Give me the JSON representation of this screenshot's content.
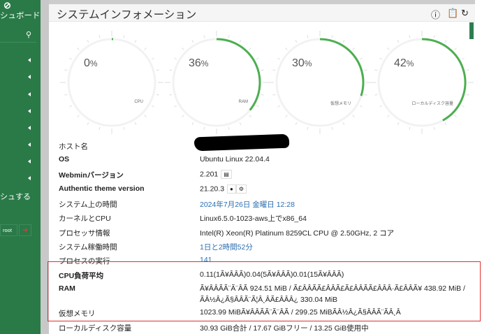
{
  "sidebar": {
    "dashboard_label": "シュボード",
    "refresh_label": "シュする",
    "user_label": "root",
    "accent": "#2a7a48"
  },
  "panel": {
    "title": "システムインフォメーション",
    "icons": [
      "help-icon",
      "clipboard-icon",
      "reload-icon"
    ]
  },
  "gauges": [
    {
      "label": "CPU",
      "value": 0,
      "display": "0"
    },
    {
      "label": "RAM",
      "value": 36,
      "display": "36"
    },
    {
      "label": "仮想メモリ",
      "value": 30,
      "display": "30"
    },
    {
      "label": "ローカルディスク容量",
      "value": 42,
      "display": "42"
    }
  ],
  "percent_sign": "%",
  "info": [
    {
      "label": "ホスト名",
      "value": ""
    },
    {
      "label": "OS",
      "value": "Ubuntu Linux 22.04.4"
    },
    {
      "label": "Webminバージョン",
      "value": "2.201"
    },
    {
      "label": "Authentic theme version",
      "value": "21.20.3"
    },
    {
      "label": "システム上の時間",
      "value": "2024年7月26日 金曜日 12:28"
    },
    {
      "label": "カーネルとCPU",
      "value": "Linux6.5.0-1023-aws上でx86_64"
    },
    {
      "label": "プロセッサ情報",
      "value": "Intel(R) Xeon(R) Platinum 8259CL CPU @ 2.50GHz, 2 コア"
    },
    {
      "label": "システム稼働時間",
      "value": "1日と2時間52分"
    },
    {
      "label": "プロセスの実行",
      "value": "141"
    },
    {
      "label": "CPU負荷平均",
      "value": "0.11(1Ã¥ÂÂÃ)0.04(5Ã¥ÂÂÃ)0.01(15Ã¥ÂÂÃ)"
    },
    {
      "label": "RAM",
      "value": "Ã¥ÂÂÃÃ¨Ã¨ÂÃ 924.51 MiB / Ã£ÂÂÃÃ£ÂÂÃ£Ã£ÂÂÃÃ£ÂÂÂ·Ã£ÂÂÃ¥ 438.92 MiB /",
      "value2": "ÃÂ½Â¿Ã§ÂÂÃ¨Ã¦Â¸ÂÃ£ÂÂÂ¿ 330.04 MiB"
    },
    {
      "label": "仮想メモリ",
      "value": "1023.99 MiBÃ¥ÂÂÃÃ¨Ã¨ÂÃ / 299.25 MiBÃÂ½Â¿Ã§ÂÂÃ¨ÃÂ¸Â"
    },
    {
      "label": "ローカルディスク容量",
      "value": "30.93 GiB合計 / 17.67 GiBフリー / 13.25 GiB使用中"
    }
  ]
}
